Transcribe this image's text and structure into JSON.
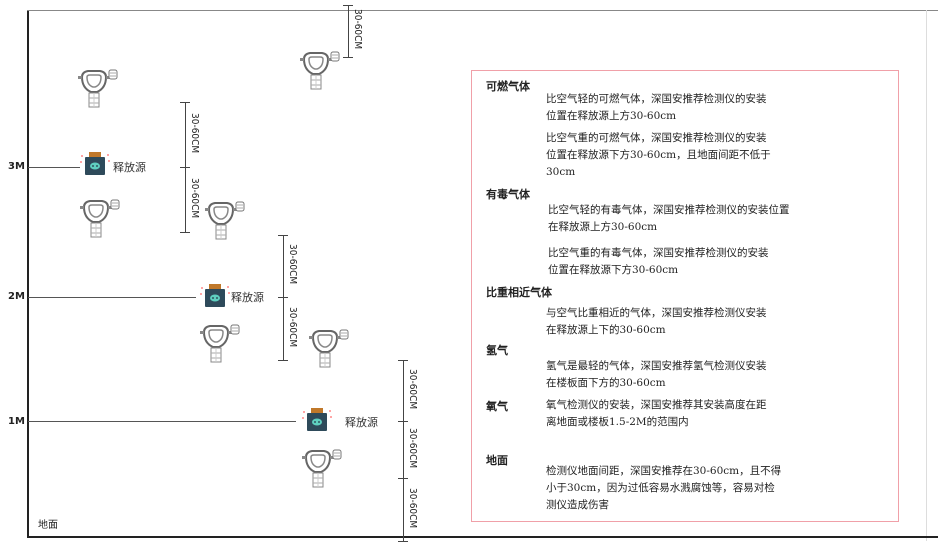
{
  "diagram": {
    "levels": [
      "3M",
      "2M",
      "1M"
    ],
    "ground_label": "地面",
    "source_label": "释放源",
    "dimension_label": "30-60CM"
  },
  "panel": {
    "sections": [
      {
        "heading": "可燃气体",
        "paragraphs": [
          [
            "比空气轻的可燃气体，深国安推荐检测仪的安装",
            "位置在释放源上方30-60cm"
          ],
          [
            "比空气重的可燃气体，深国安推荐检测仪的安装",
            "位置在释放源下方30-60cm，且地面间距不低于",
            "30cm"
          ]
        ]
      },
      {
        "heading": "有毒气体",
        "paragraphs": [
          [
            "比空气轻的有毒气体，深国安推荐检测仪的安装位置",
            "在释放源上方30-60cm"
          ],
          [
            "比空气重的有毒气体，深国安推荐检测仪的安装",
            "位置在释放源下方30-60cm"
          ]
        ]
      },
      {
        "heading": "比重相近气体",
        "paragraphs": [
          [
            "与空气比重相近的气体，深国安推荐检测仪安装",
            "在释放源上下的30-60cm"
          ]
        ]
      },
      {
        "heading": "氢气",
        "paragraphs": [
          [
            "氢气是最轻的气体，深国安推荐氢气检测仪安装",
            "在楼板面下方的30-60cm"
          ]
        ]
      },
      {
        "heading": "氧气",
        "paragraphs": [
          [
            "氧气检测仪的安装，深国安推荐其安装高度在距",
            "离地面或楼板1.5-2M的范围内"
          ]
        ]
      },
      {
        "heading": "地面",
        "paragraphs": [
          [
            "检测仪地面间距，深国安推荐在30-60cm，且不得",
            "小于30cm，因为过低容易水溅腐蚀等，容易对检",
            "测仪造成伤害"
          ]
        ]
      }
    ]
  },
  "colors": {
    "panel_border": "#f0a0a8",
    "source_body": "#2e4a5a",
    "source_cap": "#c0782a",
    "source_face": "#5fd0c0"
  }
}
